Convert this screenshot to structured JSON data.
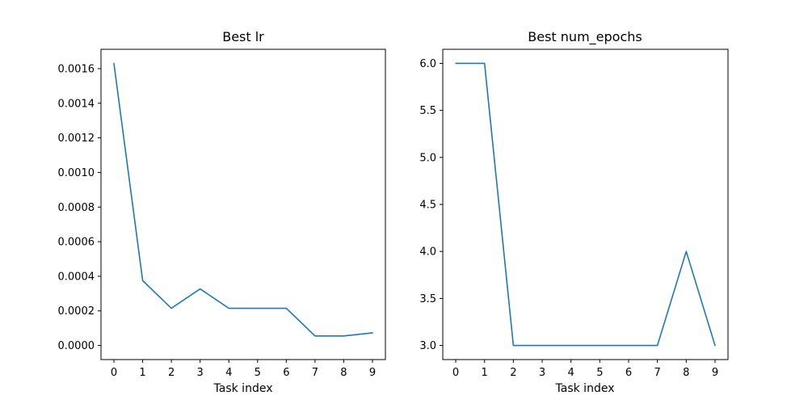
{
  "chart_data": [
    {
      "type": "line",
      "title": "Best lr",
      "xlabel": "Task index",
      "ylabel": "",
      "x": [
        0,
        1,
        2,
        3,
        4,
        5,
        6,
        7,
        8,
        9
      ],
      "series": [
        {
          "values": [
            0.00163,
            0.000375,
            0.000215,
            0.000327,
            0.000215,
            0.000215,
            0.000215,
            5.5e-05,
            5.5e-05,
            7.3e-05
          ],
          "color": "#1f77b4"
        }
      ],
      "xlim": [
        -0.45,
        9.45
      ],
      "ylim": [
        -8.15e-05,
        0.001712
      ],
      "xticks": [
        0,
        1,
        2,
        3,
        4,
        5,
        6,
        7,
        8,
        9
      ],
      "yticks": [
        0.0,
        0.0002,
        0.0004,
        0.0006,
        0.0008,
        0.001,
        0.0012,
        0.0014,
        0.0016
      ],
      "ytick_labels": [
        "0.0000",
        "0.0002",
        "0.0004",
        "0.0006",
        "0.0008",
        "0.0010",
        "0.0012",
        "0.0014",
        "0.0016"
      ],
      "grid": false,
      "legend": false
    },
    {
      "type": "line",
      "title": "Best num_epochs",
      "xlabel": "Task index",
      "ylabel": "",
      "x": [
        0,
        1,
        2,
        3,
        4,
        5,
        6,
        7,
        8,
        9
      ],
      "series": [
        {
          "values": [
            6.0,
            6.0,
            3.0,
            3.0,
            3.0,
            3.0,
            3.0,
            3.0,
            4.0,
            3.0
          ],
          "color": "#1f77b4"
        }
      ],
      "xlim": [
        -0.45,
        9.45
      ],
      "ylim": [
        2.85,
        6.15
      ],
      "xticks": [
        0,
        1,
        2,
        3,
        4,
        5,
        6,
        7,
        8,
        9
      ],
      "yticks": [
        3.0,
        3.5,
        4.0,
        4.5,
        5.0,
        5.5,
        6.0
      ],
      "ytick_labels": [
        "3.0",
        "3.5",
        "4.0",
        "4.5",
        "5.0",
        "5.5",
        "6.0"
      ],
      "grid": false,
      "legend": false
    }
  ]
}
